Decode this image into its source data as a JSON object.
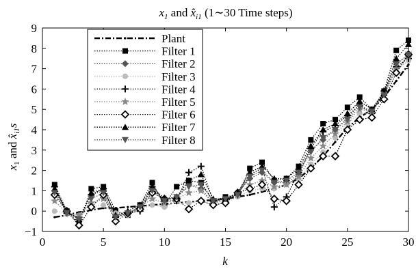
{
  "chart_data": {
    "type": "line",
    "title": "x1 and x̂i1 (1∼30 Time steps)",
    "xlabel": "k",
    "ylabel": "x1 and x̂i1s",
    "xlim": [
      0,
      30
    ],
    "ylim": [
      -1,
      9
    ],
    "xticks": [
      "0",
      "5",
      "10",
      "15",
      "20",
      "25",
      "30"
    ],
    "yticks": [
      "−1",
      "0",
      "1",
      "2",
      "3",
      "4",
      "5",
      "6",
      "7",
      "8",
      "9"
    ],
    "grid": false,
    "legend_position": "upper-left",
    "x": [
      1,
      2,
      3,
      4,
      5,
      6,
      7,
      8,
      9,
      10,
      11,
      12,
      13,
      14,
      15,
      16,
      17,
      18,
      19,
      20,
      21,
      22,
      23,
      24,
      25,
      26,
      27,
      28,
      29,
      30
    ],
    "series": [
      {
        "name": "Plant",
        "marker": "dot",
        "color": "#000000",
        "values": [
          -0.3,
          -0.2,
          -0.05,
          0.05,
          0.15,
          0.15,
          0.2,
          0.25,
          0.3,
          0.35,
          0.4,
          0.45,
          0.5,
          0.55,
          0.6,
          0.7,
          0.8,
          0.95,
          1.1,
          1.3,
          1.6,
          2.1,
          2.7,
          3.4,
          4.1,
          4.6,
          5.0,
          5.6,
          6.4,
          7.2
        ]
      },
      {
        "name": "Filter 1",
        "marker": "square",
        "color": "#000000",
        "values": [
          1.3,
          0.0,
          -0.6,
          1.1,
          1.2,
          0.0,
          -0.2,
          0.3,
          1.4,
          0.3,
          1.2,
          1.5,
          1.4,
          0.5,
          0.7,
          0.8,
          2.1,
          2.4,
          1.5,
          1.6,
          2.2,
          3.5,
          4.3,
          4.5,
          5.1,
          5.6,
          5.0,
          5.9,
          7.9,
          8.4
        ]
      },
      {
        "name": "Filter 2",
        "marker": "diamond",
        "color": "#555555",
        "values": [
          1.0,
          0.0,
          -0.4,
          0.8,
          1.0,
          -0.2,
          -0.1,
          0.2,
          1.1,
          0.5,
          0.7,
          1.3,
          1.1,
          0.4,
          0.6,
          0.9,
          1.6,
          1.9,
          1.4,
          1.4,
          1.8,
          3.0,
          3.5,
          4.0,
          4.6,
          5.2,
          4.9,
          5.8,
          7.3,
          7.6
        ]
      },
      {
        "name": "Filter 3",
        "marker": "circle",
        "color": "#bbbbbb",
        "values": [
          0.0,
          -0.1,
          -0.3,
          0.2,
          0.3,
          -0.1,
          -0.2,
          0.1,
          0.3,
          0.2,
          0.5,
          0.4,
          0.5,
          0.3,
          0.4,
          0.7,
          1.0,
          1.1,
          1.1,
          1.3,
          1.6,
          2.3,
          2.9,
          3.6,
          4.3,
          4.8,
          4.8,
          5.8,
          6.9,
          7.4
        ]
      },
      {
        "name": "Filter 4",
        "marker": "plus",
        "color": "#000000",
        "values": [
          1.2,
          -0.1,
          -0.3,
          0.8,
          1.1,
          -0.3,
          -0.1,
          0.0,
          1.2,
          0.5,
          0.5,
          1.9,
          2.2,
          0.5,
          0.6,
          0.8,
          1.8,
          2.1,
          0.2,
          0.7,
          1.9,
          3.1,
          3.9,
          4.2,
          4.7,
          5.2,
          4.8,
          5.9,
          7.1,
          7.5
        ]
      },
      {
        "name": "Filter 5",
        "marker": "star",
        "color": "#888888",
        "values": [
          0.5,
          -0.1,
          -0.2,
          0.4,
          0.6,
          -0.2,
          -0.1,
          0.2,
          0.6,
          0.4,
          0.6,
          0.9,
          1.0,
          0.4,
          0.5,
          0.8,
          1.3,
          1.5,
          1.2,
          1.3,
          1.7,
          2.6,
          3.2,
          3.8,
          4.4,
          5.0,
          4.9,
          5.7,
          7.0,
          7.6
        ]
      },
      {
        "name": "Filter 6",
        "marker": "open-diamond",
        "color": "#000000",
        "values": [
          0.8,
          0.0,
          -0.7,
          0.2,
          0.8,
          -0.5,
          -0.1,
          0.1,
          0.9,
          0.6,
          0.6,
          0.1,
          0.5,
          0.3,
          0.4,
          0.9,
          1.1,
          1.3,
          0.6,
          0.5,
          1.3,
          2.1,
          2.7,
          2.7,
          4.0,
          4.5,
          4.6,
          5.5,
          6.8,
          7.7
        ]
      },
      {
        "name": "Filter 7",
        "marker": "triangle-up",
        "color": "#000000",
        "values": [
          1.1,
          0.0,
          -0.4,
          0.9,
          1.1,
          -0.2,
          0.0,
          0.3,
          1.2,
          0.6,
          0.7,
          1.5,
          1.8,
          0.6,
          0.6,
          0.9,
          1.9,
          2.2,
          1.6,
          1.6,
          2.1,
          3.2,
          4.0,
          4.3,
          4.8,
          5.4,
          5.0,
          5.8,
          7.5,
          8.2
        ]
      },
      {
        "name": "Filter 8",
        "marker": "triangle-down",
        "color": "#555555",
        "values": [
          0.9,
          -0.1,
          -0.4,
          0.6,
          0.9,
          -0.3,
          -0.1,
          0.2,
          1.0,
          0.5,
          0.7,
          1.2,
          1.3,
          0.5,
          0.6,
          0.8,
          1.7,
          2.0,
          1.4,
          1.5,
          1.9,
          2.9,
          3.6,
          4.0,
          4.5,
          5.1,
          4.9,
          5.7,
          7.2,
          7.7
        ]
      }
    ]
  }
}
